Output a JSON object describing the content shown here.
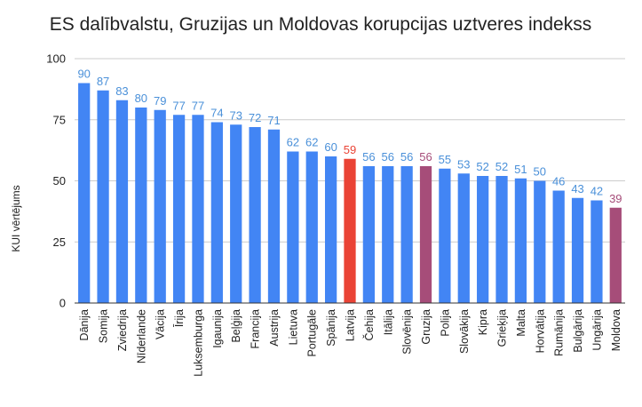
{
  "chart_data": {
    "type": "bar",
    "title": "ES dalībvalstu, Gruzijas un Moldovas korupcijas uztveres indekss",
    "xlabel": "",
    "ylabel": "KUI vērtējums",
    "ylim": [
      0,
      100
    ],
    "yticks": [
      0,
      25,
      50,
      75,
      100
    ],
    "grid": true,
    "legend": "none",
    "colors": {
      "default": "#4285f4",
      "latvia": "#ea4335",
      "highlight": "#a64d79",
      "label_default": "#4a90d9"
    },
    "categories": [
      "Dānija",
      "Somija",
      "Zviedrija",
      "Nīderlande",
      "Vācija",
      "Īrija",
      "Luksemburga",
      "Igaunija",
      "Beļģija",
      "Francija",
      "Austrija",
      "Lietuva",
      "Portugāle",
      "Spānija",
      "Latvija",
      "Čehija",
      "Itālija",
      "Slovēnija",
      "Gruzija",
      "Polija",
      "Slovākija",
      "Kipra",
      "Grieķija",
      "Malta",
      "Horvātija",
      "Rumānija",
      "Bulgārija",
      "Ungārija",
      "Moldova"
    ],
    "values": [
      90,
      87,
      83,
      80,
      79,
      77,
      77,
      74,
      73,
      72,
      71,
      62,
      62,
      60,
      59,
      56,
      56,
      56,
      56,
      55,
      53,
      52,
      52,
      51,
      50,
      46,
      43,
      42,
      39
    ],
    "bar_colors": [
      "default",
      "default",
      "default",
      "default",
      "default",
      "default",
      "default",
      "default",
      "default",
      "default",
      "default",
      "default",
      "default",
      "default",
      "latvia",
      "default",
      "default",
      "default",
      "highlight",
      "default",
      "default",
      "default",
      "default",
      "default",
      "default",
      "default",
      "default",
      "default",
      "highlight"
    ]
  }
}
